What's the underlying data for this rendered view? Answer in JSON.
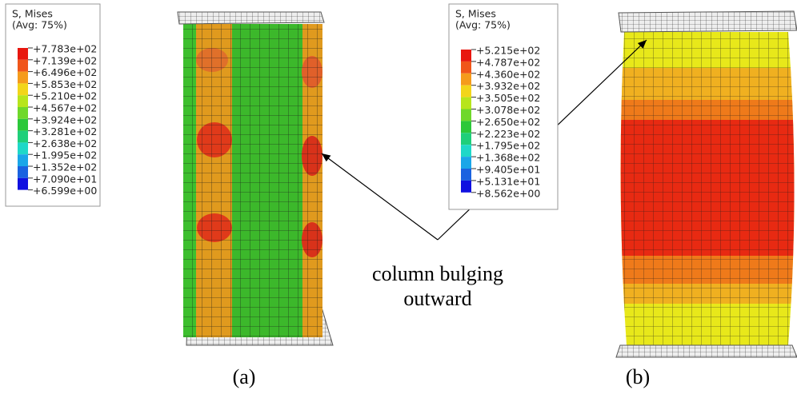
{
  "legends": [
    {
      "title": "S, Mises",
      "subtitle": "(Avg: 75%)",
      "labels": [
        "+7.783e+02",
        "+7.139e+02",
        "+6.496e+02",
        "+5.853e+02",
        "+5.210e+02",
        "+4.567e+02",
        "+3.924e+02",
        "+3.281e+02",
        "+2.638e+02",
        "+1.995e+02",
        "+1.352e+02",
        "+7.090e+01",
        "+6.599e+00"
      ]
    },
    {
      "title": "S, Mises",
      "subtitle": "(Avg: 75%)",
      "labels": [
        "+5.215e+02",
        "+4.787e+02",
        "+4.360e+02",
        "+3.932e+02",
        "+3.505e+02",
        "+3.078e+02",
        "+2.650e+02",
        "+2.223e+02",
        "+1.795e+02",
        "+1.368e+02",
        "+9.405e+01",
        "+5.131e+01",
        "+8.562e+00"
      ]
    }
  ],
  "annotation": {
    "lines": [
      "column bulging",
      "outward"
    ]
  },
  "captions": [
    "(a)",
    "(b)"
  ]
}
